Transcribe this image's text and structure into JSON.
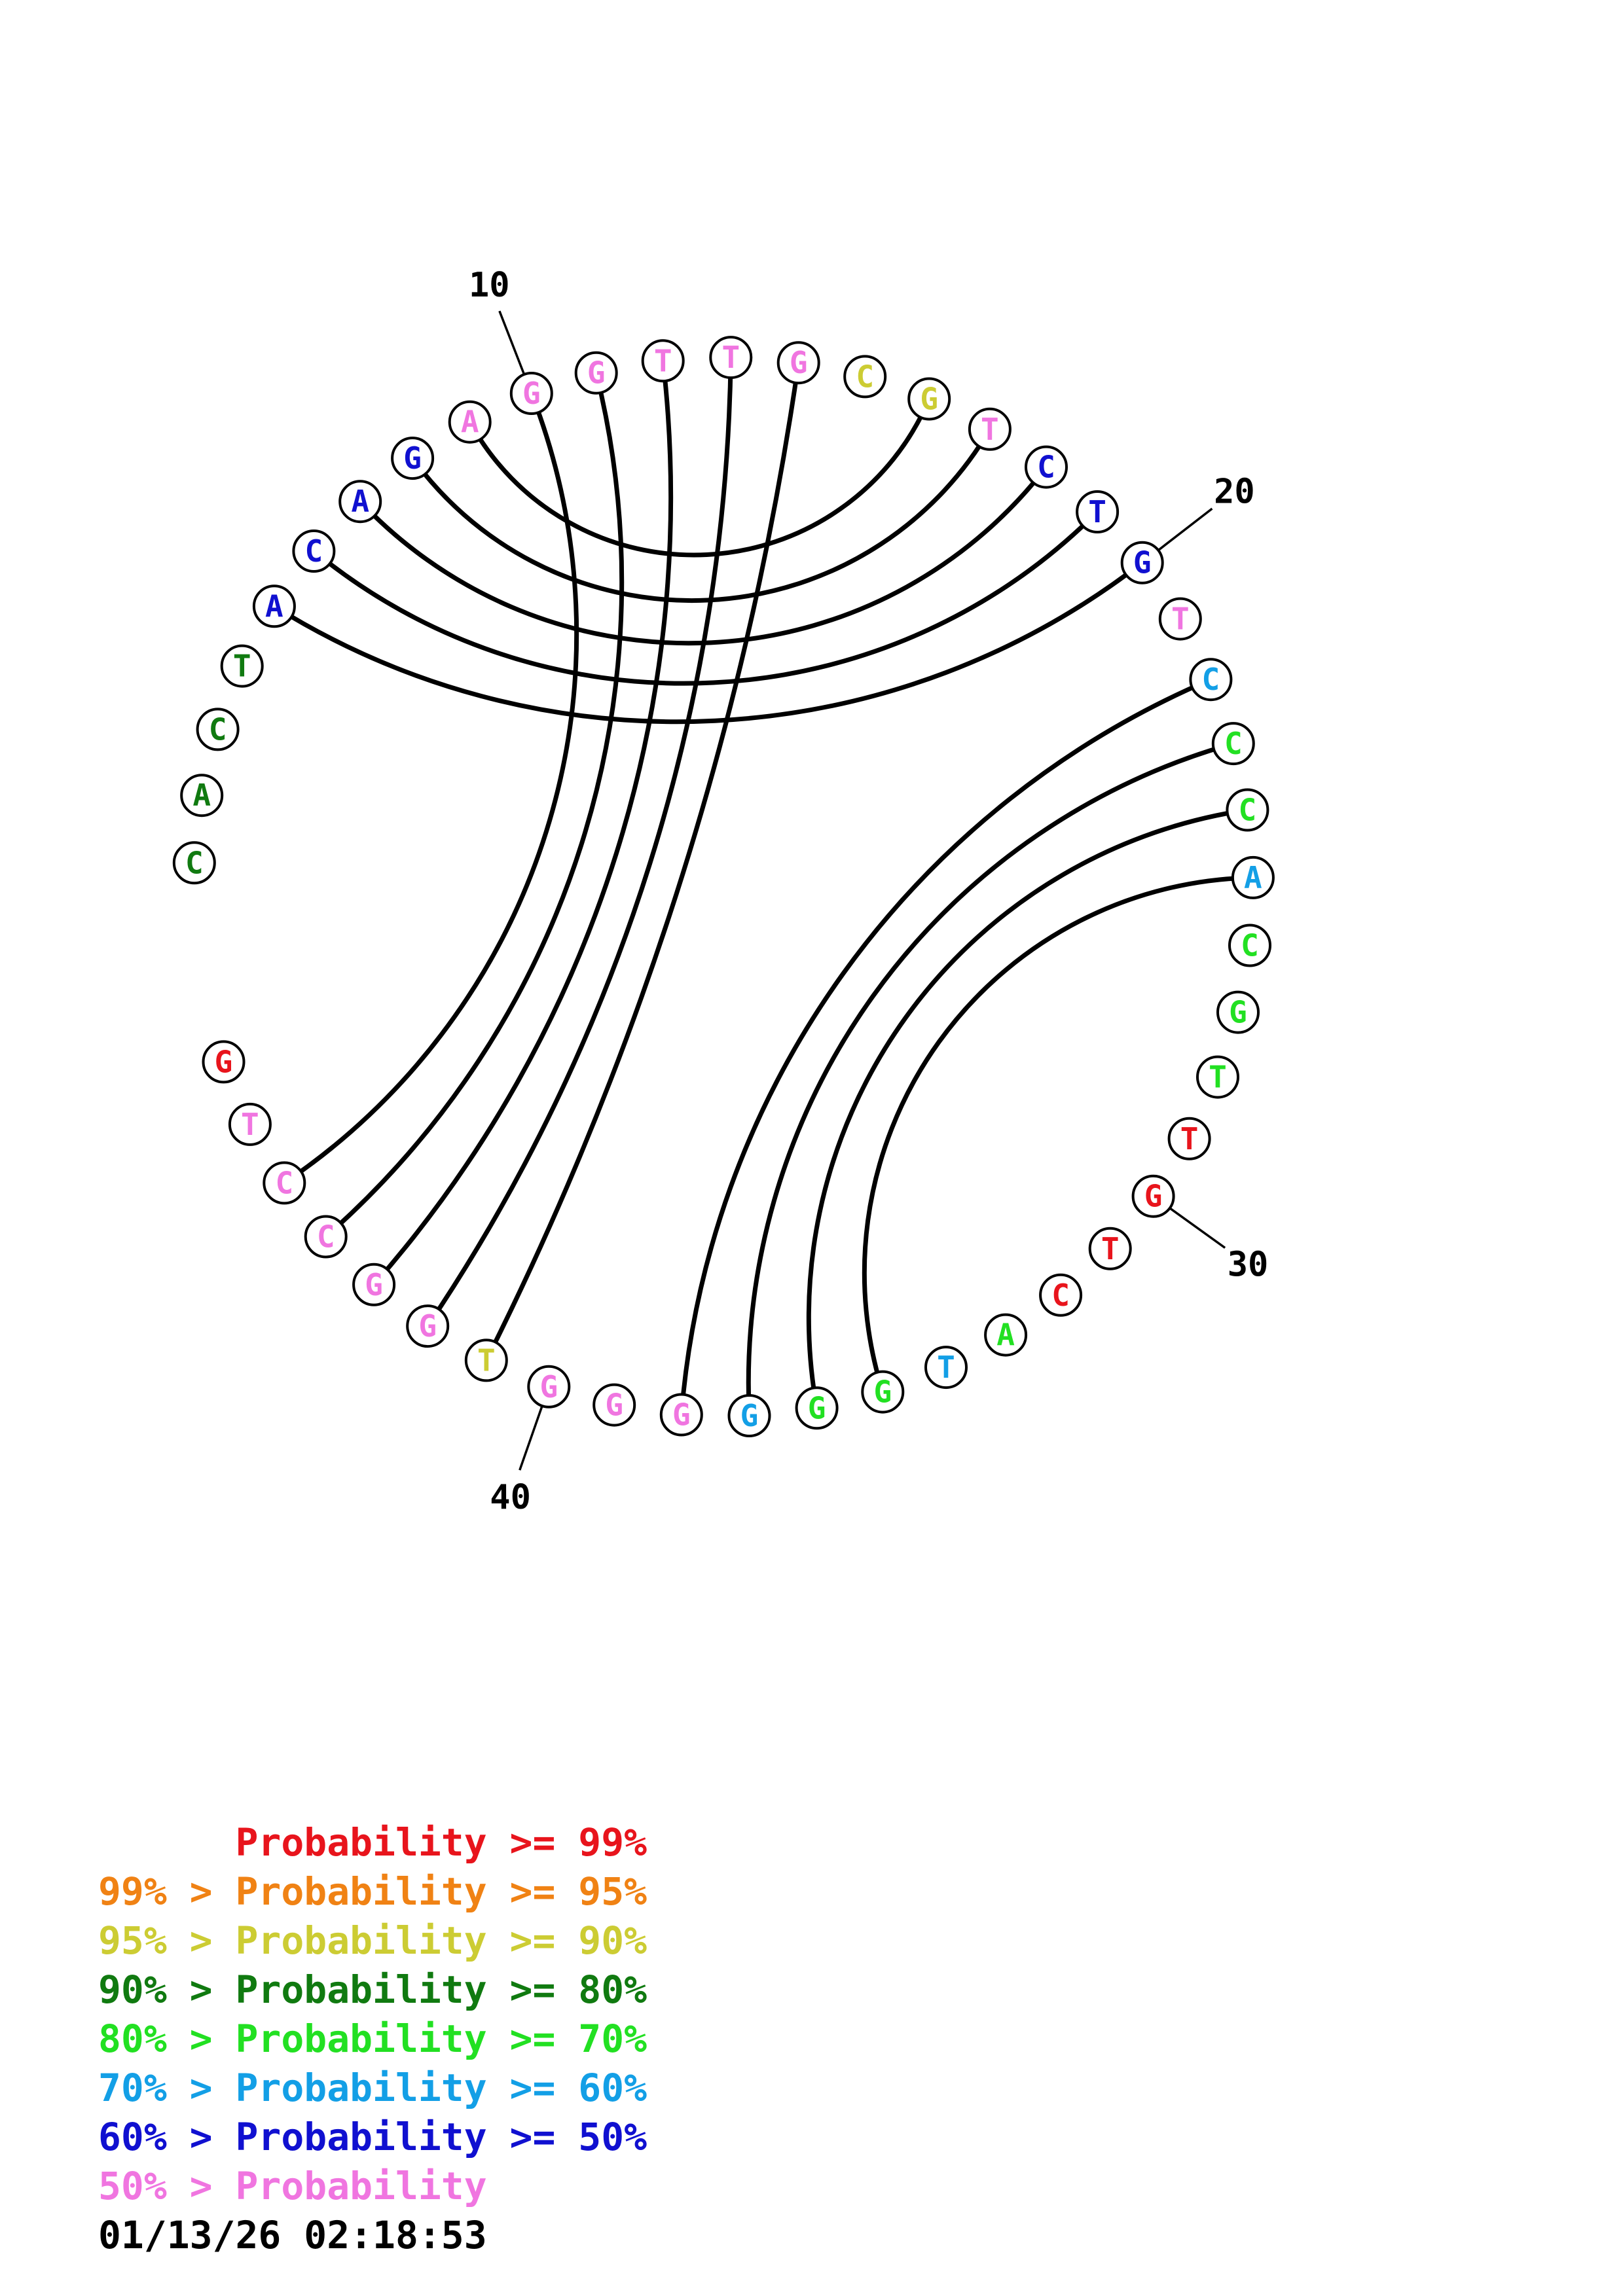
{
  "diagram": {
    "type": "circular-rna-structure",
    "sequence": [
      "C",
      "A",
      "C",
      "T",
      "A",
      "C",
      "A",
      "G",
      "A",
      "G",
      "G",
      "T",
      "T",
      "G",
      "C",
      "G",
      "T",
      "C",
      "T",
      "G",
      "T",
      "C",
      "C",
      "C",
      "A",
      "C",
      "G",
      "T",
      "T",
      "G",
      "T",
      "C",
      "A",
      "T",
      "G",
      "G",
      "G",
      "G",
      "G",
      "G",
      "T",
      "G",
      "G",
      "C",
      "C",
      "T",
      "G"
    ],
    "probability_classes": [
      3,
      3,
      3,
      3,
      6,
      6,
      6,
      6,
      7,
      7,
      7,
      7,
      7,
      7,
      2,
      2,
      7,
      6,
      6,
      6,
      7,
      5,
      4,
      4,
      5,
      4,
      4,
      4,
      0,
      0,
      0,
      0,
      4,
      5,
      4,
      4,
      5,
      7,
      7,
      7,
      2,
      7,
      7,
      7,
      7,
      7,
      0
    ],
    "pairs": [
      [
        5,
        20
      ],
      [
        6,
        19
      ],
      [
        7,
        18
      ],
      [
        8,
        17
      ],
      [
        9,
        16
      ],
      [
        10,
        45
      ],
      [
        11,
        44
      ],
      [
        12,
        43
      ],
      [
        13,
        42
      ],
      [
        14,
        41
      ],
      [
        22,
        38
      ],
      [
        23,
        37
      ],
      [
        24,
        36
      ],
      [
        25,
        35
      ]
    ],
    "tick_labels": [
      {
        "position": 10,
        "label": "10"
      },
      {
        "position": 20,
        "label": "20"
      },
      {
        "position": 30,
        "label": "30"
      },
      {
        "position": 40,
        "label": "40"
      }
    ],
    "colors": [
      "#e8141c",
      "#f08214",
      "#cccc33",
      "#107a10",
      "#22e022",
      "#139fe6",
      "#1010d0",
      "#f075e0"
    ]
  },
  "legend": [
    {
      "left": "      ",
      "right": "Probability >= 99%",
      "color": "#e8141c"
    },
    {
      "left": "99% > ",
      "right": "Probability >= 95%",
      "color": "#f08214"
    },
    {
      "left": "95% > ",
      "right": "Probability >= 90%",
      "color": "#cccc33"
    },
    {
      "left": "90% > ",
      "right": "Probability >= 80%",
      "color": "#107a10"
    },
    {
      "left": "80% > ",
      "right": "Probability >= 70%",
      "color": "#22e022"
    },
    {
      "left": "70% > ",
      "right": "Probability >= 60%",
      "color": "#139fe6"
    },
    {
      "left": "60% > ",
      "right": "Probability >= 50%",
      "color": "#1010d0"
    },
    {
      "left": "50% > ",
      "right": "Probability",
      "color": "#f075e0"
    }
  ],
  "timestamp": "01/13/26 02:18:53"
}
